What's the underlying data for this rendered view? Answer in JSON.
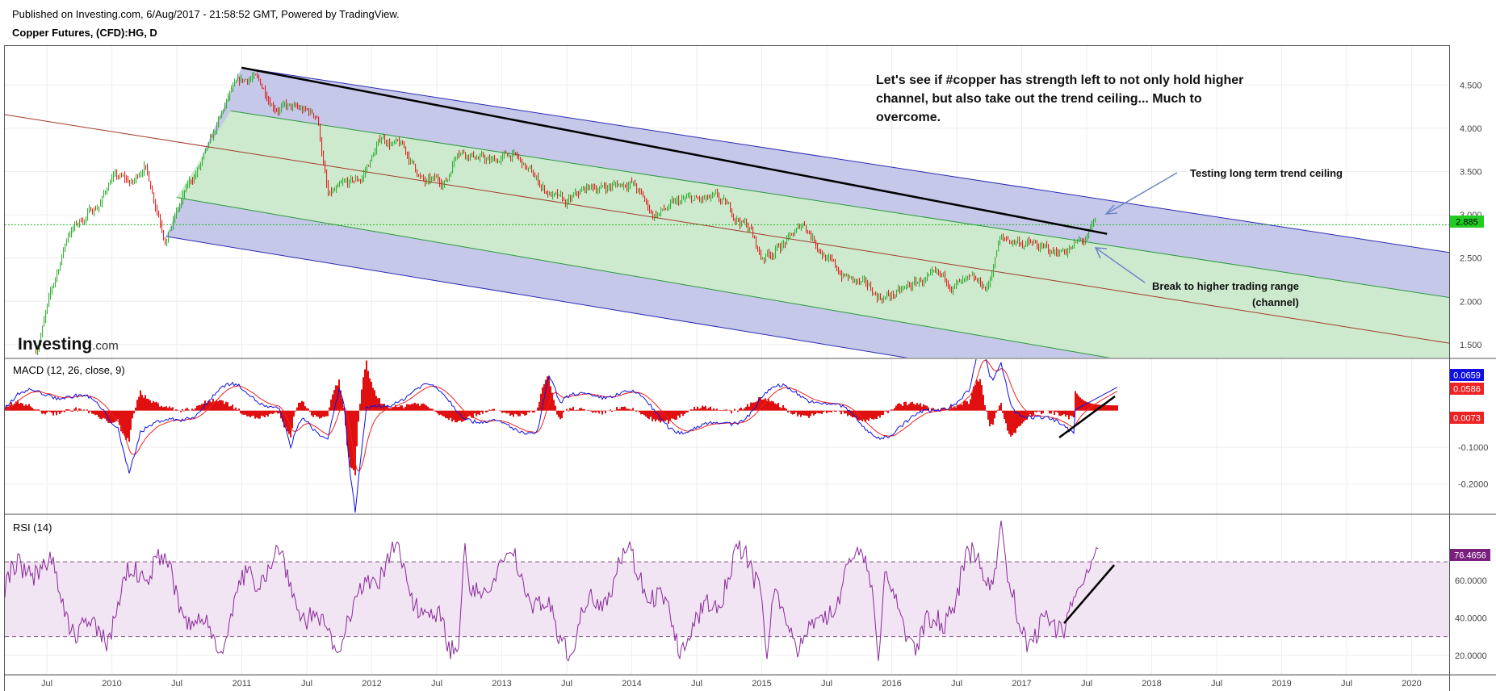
{
  "header": {
    "published": "Published on Investing.com, 6/Aug/2017 - 21:58:52 GMT, Powered by TradingView.",
    "symbol": "Copper Futures, (CFD):HG, D"
  },
  "watermark": {
    "brand": "Investing",
    "suffix": ".com"
  },
  "annotations": {
    "main_comment": [
      "Let's see if #copper has strength left to not only hold higher",
      "channel, but also take out the trend ceiling... Much to",
      "overcome."
    ],
    "ceiling_note": "Testing long term trend ceiling",
    "break_note": "Break to higher trading range",
    "break_note_sub": "(channel)"
  },
  "colors": {
    "price_up": "#22aa22",
    "price_down": "#e01010",
    "channel_outer": "#c5c8e8",
    "channel_inner": "#cdeacf",
    "macd_line": "#1010e0",
    "signal_line": "#ee2222",
    "rsi_line": "#8a2a9a",
    "rsi_band": "#f1e4f3",
    "last_price_badge": "#22cc22",
    "rsi_badge": "#7a1f7e",
    "macd_badge": "#1010e0",
    "signal_badge": "#ee2222"
  },
  "chart_data": [
    {
      "type": "candlestick",
      "title": "Copper Futures, (CFD):HG, D",
      "x_ticks": [
        "Jul",
        "2010",
        "Jul",
        "2011",
        "Jul",
        "2012",
        "Jul",
        "2013",
        "Jul",
        "2014",
        "Jul",
        "2015",
        "Jul",
        "2016",
        "Jul",
        "2017",
        "Jul",
        "2018",
        "Jul",
        "2019",
        "Jul",
        "2020"
      ],
      "y_ticks": [
        "4.500",
        "4.000",
        "3.500",
        "3.000",
        "2.500",
        "2.000",
        "1.500"
      ],
      "ylim": [
        1.35,
        4.95
      ],
      "last_price_label": "2.885",
      "last_price": 2.885,
      "price_path": [
        [
          "2009-06",
          1.45
        ],
        [
          "2009-09",
          2.8
        ],
        [
          "2009-12",
          3.15
        ],
        [
          "2010-01",
          3.45
        ],
        [
          "2010-03",
          3.35
        ],
        [
          "2010-04",
          3.6
        ],
        [
          "2010-06",
          2.75
        ],
        [
          "2010-08",
          3.3
        ],
        [
          "2010-10",
          3.75
        ],
        [
          "2010-12",
          4.4
        ],
        [
          "2011-02",
          4.6
        ],
        [
          "2011-04",
          4.3
        ],
        [
          "2011-06",
          4.2
        ],
        [
          "2011-08",
          4.15
        ],
        [
          "2011-09",
          3.2
        ],
        [
          "2011-12",
          3.4
        ],
        [
          "2012-02",
          3.9
        ],
        [
          "2012-04",
          3.75
        ],
        [
          "2012-06",
          3.35
        ],
        [
          "2012-08",
          3.4
        ],
        [
          "2012-09",
          3.8
        ],
        [
          "2012-12",
          3.6
        ],
        [
          "2013-02",
          3.7
        ],
        [
          "2013-05",
          3.3
        ],
        [
          "2013-07",
          3.1
        ],
        [
          "2013-09",
          3.3
        ],
        [
          "2013-12",
          3.35
        ],
        [
          "2014-01",
          3.4
        ],
        [
          "2014-03",
          3.0
        ],
        [
          "2014-06",
          3.15
        ],
        [
          "2014-09",
          3.15
        ],
        [
          "2014-12",
          2.85
        ],
        [
          "2015-01",
          2.5
        ],
        [
          "2015-04",
          2.75
        ],
        [
          "2015-05",
          2.9
        ],
        [
          "2015-08",
          2.35
        ],
        [
          "2015-12",
          2.05
        ],
        [
          "2016-02",
          2.1
        ],
        [
          "2016-04",
          2.25
        ],
        [
          "2016-07",
          2.2
        ],
        [
          "2016-10",
          2.15
        ],
        [
          "2016-11",
          2.7
        ],
        [
          "2017-01",
          2.7
        ],
        [
          "2017-04",
          2.55
        ],
        [
          "2017-07",
          2.7
        ],
        [
          "2017-08",
          2.885
        ]
      ],
      "channels": {
        "outer_top": [
          [
            "2011-01",
            4.7
          ],
          [
            "2020-08",
            2.5
          ]
        ],
        "outer_bottom": [
          [
            "2010-06",
            2.75
          ],
          [
            "2019-03",
            0.6
          ]
        ],
        "inner_top": [
          [
            "2010-12",
            4.2
          ],
          [
            "2020-08",
            1.98
          ]
        ],
        "median": [
          [
            "2009-06",
            4.1
          ],
          [
            "2020-08",
            1.45
          ]
        ],
        "inner_bottom": [
          [
            "2010-07",
            3.2
          ],
          [
            "2020-08",
            0.6
          ]
        ],
        "trend_ceiling": [
          [
            "2011-01",
            4.7
          ],
          [
            "2017-09",
            2.78
          ]
        ]
      },
      "reference_line": 2.885
    },
    {
      "type": "line",
      "title": "MACD (12, 26, close, 9)",
      "series": [
        {
          "name": "MACD",
          "last": 0.0659,
          "label": "0.0659"
        },
        {
          "name": "Signal",
          "last": 0.0586,
          "label": "0.0586"
        },
        {
          "name": "Histogram",
          "last": 0.0073,
          "label": "0.0073"
        }
      ],
      "y_ticks": [
        "-0.1000",
        "-0.2000"
      ],
      "ylim": [
        -0.28,
        0.14
      ]
    },
    {
      "type": "line",
      "title": "RSI (14)",
      "series": [
        {
          "name": "RSI",
          "last": 76.4656,
          "label": "76.4656"
        }
      ],
      "y_ticks": [
        "60.0000",
        "40.0000",
        "20.0000"
      ],
      "band": [
        30,
        70
      ],
      "ylim": [
        10,
        95
      ]
    }
  ]
}
